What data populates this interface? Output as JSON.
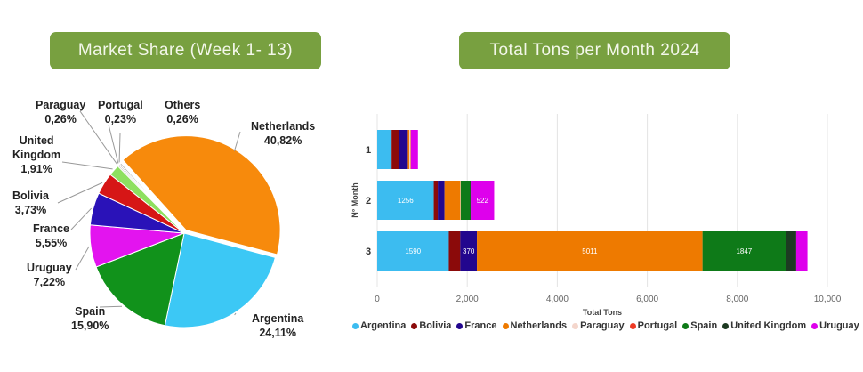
{
  "chart_data": [
    {
      "type": "pie",
      "title": "Market Share (Week 1- 13)",
      "slices": [
        {
          "label": "Netherlands",
          "value": 40.82,
          "text": "40,82%",
          "color": "#f78a0c"
        },
        {
          "label": "Argentina",
          "value": 24.11,
          "text": "24,11%",
          "color": "#3cc8f5"
        },
        {
          "label": "Spain",
          "value": 15.9,
          "text": "15,90%",
          "color": "#11921b"
        },
        {
          "label": "Uruguay",
          "value": 7.22,
          "text": "7,22%",
          "color": "#e314ef"
        },
        {
          "label": "France",
          "value": 5.55,
          "text": "5,55%",
          "color": "#2a12b8"
        },
        {
          "label": "Bolivia",
          "value": 3.73,
          "text": "3,73%",
          "color": "#d61616"
        },
        {
          "label": "United Kingdom",
          "value": 1.91,
          "text": "1,91%",
          "color": "#8ee060"
        },
        {
          "label": "Paraguay",
          "value": 0.26,
          "text": "0,26%",
          "color": "#cfcfcf"
        },
        {
          "label": "Portugal",
          "value": 0.23,
          "text": "0,23%",
          "color": "#b0b0b0"
        },
        {
          "label": "Others",
          "value": 0.26,
          "text": "0,26%",
          "color": "#a8a8a8"
        }
      ]
    },
    {
      "type": "bar",
      "orientation": "horizontal-stacked",
      "title": "Total Tons per Month 2024",
      "xlabel": "Total Tons",
      "ylabel": "N° Month",
      "xlim": [
        0,
        10000
      ],
      "xticks": [
        "0",
        "2,000",
        "4,000",
        "6,000",
        "8,000",
        "10,000"
      ],
      "xtick_values": [
        0,
        2000,
        4000,
        6000,
        8000,
        10000
      ],
      "categories": [
        "1",
        "2",
        "3"
      ],
      "legend_position": "bottom",
      "series": [
        {
          "name": "Argentina",
          "color": "#3cbcf0",
          "values": [
            320,
            1256,
            1590
          ],
          "labels": [
            null,
            "1256",
            "1590"
          ]
        },
        {
          "name": "Bolivia",
          "color": "#8b0a0a",
          "values": [
            155,
            90,
            255
          ],
          "labels": [
            null,
            null,
            null
          ]
        },
        {
          "name": "France",
          "color": "#22068e",
          "values": [
            205,
            150,
            370
          ],
          "labels": [
            null,
            null,
            "370"
          ]
        },
        {
          "name": "Netherlands",
          "color": "#ee7a00",
          "values": [
            35,
            350,
            5011
          ],
          "labels": [
            null,
            null,
            "5011"
          ]
        },
        {
          "name": "Paraguay",
          "color": "#f4d6cc",
          "values": [
            25,
            10,
            0
          ],
          "labels": [
            null,
            null,
            null
          ]
        },
        {
          "name": "Portugal",
          "color": "#ee3a24",
          "values": [
            10,
            0,
            0
          ],
          "labels": [
            null,
            null,
            null
          ]
        },
        {
          "name": "Spain",
          "color": "#0e7a18",
          "values": [
            0,
            210,
            1847
          ],
          "labels": [
            null,
            null,
            "1847"
          ]
        },
        {
          "name": "United Kingdom",
          "color": "#1d3a22",
          "values": [
            0,
            10,
            234
          ],
          "labels": [
            null,
            null,
            null
          ]
        },
        {
          "name": "Uruguay",
          "color": "#de00ec",
          "values": [
            155,
            522,
            250
          ],
          "labels": [
            null,
            "522",
            null
          ]
        }
      ]
    }
  ]
}
